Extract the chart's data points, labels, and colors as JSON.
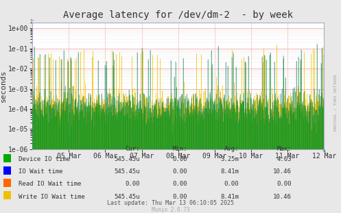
{
  "title": "Average latency for /dev/dm-2  - by week",
  "ylabel": "seconds",
  "watermark": "RRDTOOL / TOBI OETIKER",
  "munin_version": "Munin 2.0.73",
  "xticklabels": [
    "05 Mar",
    "06 Mar",
    "07 Mar",
    "08 Mar",
    "09 Mar",
    "10 Mar",
    "11 Mar",
    "12 Mar"
  ],
  "bg_color": "#e8e8e8",
  "plot_bg_color": "#ffffff",
  "grid_color_major": "#f0b0b0",
  "grid_color_minor": "#e8e0e0",
  "colors": {
    "device_io": "#00aa00",
    "io_wait": "#0000ff",
    "read_io_wait": "#ff6600",
    "write_io_wait": "#f0c000"
  },
  "legend": [
    {
      "label": "Device IO time",
      "color": "#00aa00"
    },
    {
      "label": "IO Wait time",
      "color": "#0000ff"
    },
    {
      "label": "Read IO Wait time",
      "color": "#ff6600"
    },
    {
      "label": "Write IO Wait time",
      "color": "#f0c000"
    }
  ],
  "stats": {
    "headers": [
      "Cur:",
      "Min:",
      "Avg:",
      "Max:"
    ],
    "rows": [
      [
        "Device IO time",
        "545.45u",
        "0.00",
        "3.25m",
        "4.63"
      ],
      [
        "IO Wait time",
        "545.45u",
        "0.00",
        "8.41m",
        "10.46"
      ],
      [
        "Read IO Wait time",
        "0.00",
        "0.00",
        "0.00",
        "0.00"
      ],
      [
        "Write IO Wait time",
        "545.45u",
        "0.00",
        "8.41m",
        "10.46"
      ]
    ]
  },
  "last_update": "Last update: Thu Mar 13 06:10:05 2025",
  "n_points": 700,
  "dashed_line_color": "#ff8800",
  "dashed_line_y": 4.63,
  "border_color": "#aaaacc",
  "arrow_color": "#9999bb",
  "title_color": "#333333",
  "tick_color": "#333333",
  "tick_fontsize": 7,
  "ylabel_fontsize": 8,
  "title_fontsize": 10
}
